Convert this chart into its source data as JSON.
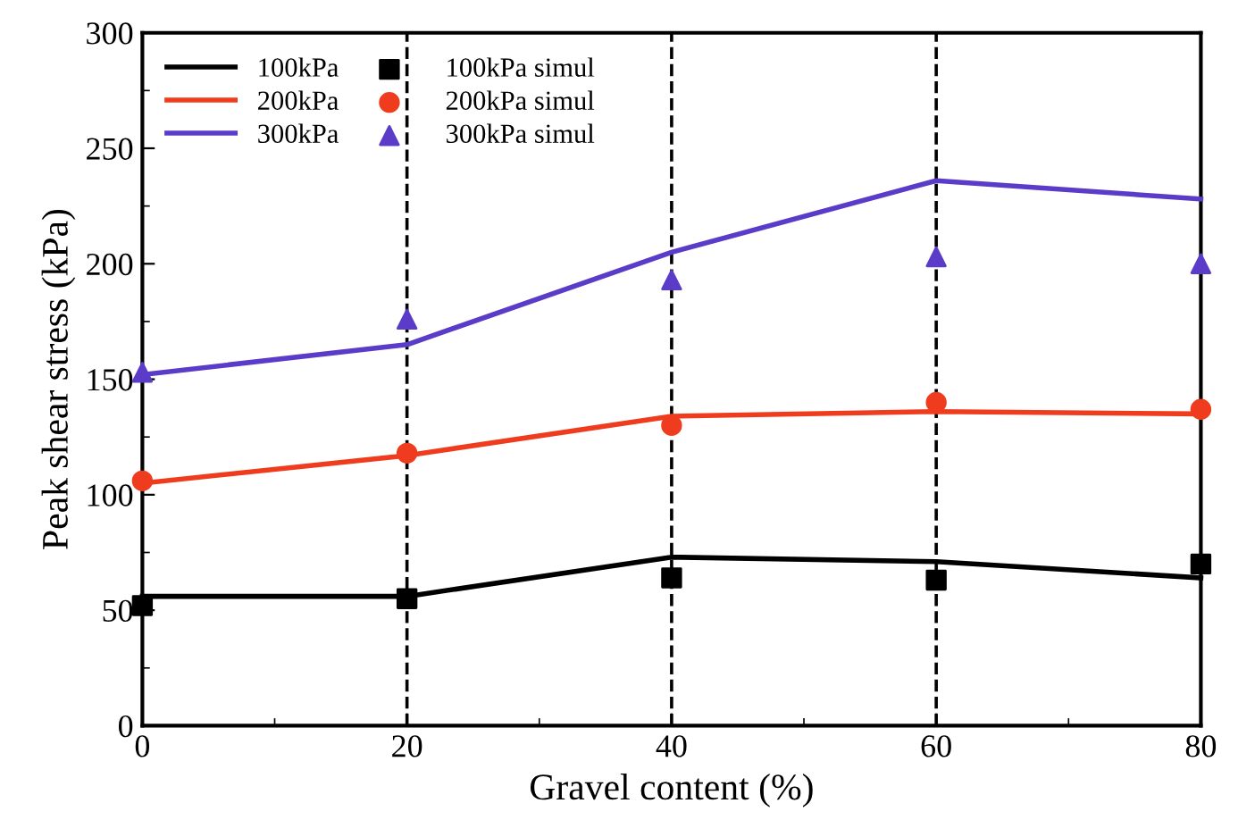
{
  "chart_data": {
    "type": "line",
    "xlabel": "Gravel content (%)",
    "ylabel": "Peak shear stress (kPa)",
    "x": [
      0,
      20,
      40,
      60,
      80
    ],
    "xlim": [
      0,
      80
    ],
    "xticks": [
      0,
      20,
      40,
      60,
      80
    ],
    "ylim": [
      0,
      300
    ],
    "yticks": [
      0,
      50,
      100,
      150,
      200,
      250,
      300
    ],
    "grid": false,
    "legend": "top left",
    "line_style": "solid",
    "series": [
      {
        "name": "100kPa",
        "color": "#000000",
        "values": [
          56,
          56,
          73,
          71,
          64
        ]
      },
      {
        "name": "200kPa",
        "color": "#f03c1e",
        "values": [
          105,
          117,
          134,
          136,
          135
        ]
      },
      {
        "name": "300kPa",
        "color": "#5a3cc8",
        "values": [
          152,
          165,
          205,
          236,
          228
        ]
      },
      {
        "name": "100kPa simul",
        "type": "scatter",
        "marker": "square",
        "color": "#000000",
        "values": [
          52,
          55,
          64,
          63,
          70
        ]
      },
      {
        "name": "200kPa simul",
        "type": "scatter",
        "marker": "circle",
        "color": "#f03c1e",
        "values": [
          106,
          118,
          130,
          140,
          137
        ]
      },
      {
        "name": "300kPa simul",
        "type": "scatter",
        "marker": "triangle",
        "color": "#5a3cc8",
        "values": [
          153,
          176,
          193,
          203,
          200
        ]
      }
    ],
    "ref_lines": [
      {
        "axis": "x",
        "value": 20,
        "color": "#000000",
        "line_style": "dashed"
      },
      {
        "axis": "x",
        "value": 40,
        "color": "#000000",
        "line_style": "dashed"
      },
      {
        "axis": "x",
        "value": 60,
        "color": "#000000",
        "line_style": "dashed"
      }
    ]
  }
}
